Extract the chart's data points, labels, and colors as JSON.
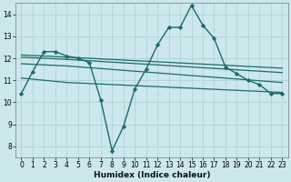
{
  "xlabel": "Humidex (Indice chaleur)",
  "xlim": [
    -0.5,
    23.5
  ],
  "ylim": [
    7.5,
    14.5
  ],
  "yticks": [
    8,
    9,
    10,
    11,
    12,
    13,
    14
  ],
  "xticks": [
    0,
    1,
    2,
    3,
    4,
    5,
    6,
    7,
    8,
    9,
    10,
    11,
    12,
    13,
    14,
    15,
    16,
    17,
    18,
    19,
    20,
    21,
    22,
    23
  ],
  "bg_color": "#cce8ec",
  "grid_color": "#aacdd4",
  "line_color": "#1a6b6b",
  "lines": [
    {
      "x": [
        0,
        1,
        2,
        3,
        4,
        5,
        6,
        7,
        8,
        9,
        10,
        11,
        12,
        13,
        14,
        15,
        16,
        17,
        18,
        19,
        20,
        21,
        22,
        23
      ],
      "y": [
        10.4,
        11.4,
        12.3,
        12.3,
        12.1,
        12.0,
        11.8,
        10.1,
        7.8,
        8.9,
        10.6,
        11.5,
        12.6,
        13.4,
        13.4,
        14.4,
        13.5,
        12.9,
        11.6,
        11.3,
        11.0,
        10.8,
        10.4,
        10.4
      ],
      "marker": "D",
      "marker_size": 2.2,
      "linewidth": 1.0
    },
    {
      "x": [
        0,
        4,
        23
      ],
      "y": [
        12.15,
        12.05,
        11.55
      ],
      "marker": null,
      "linewidth": 0.9
    },
    {
      "x": [
        0,
        4,
        23
      ],
      "y": [
        12.05,
        11.95,
        11.35
      ],
      "marker": null,
      "linewidth": 0.9
    },
    {
      "x": [
        0,
        4,
        23
      ],
      "y": [
        11.75,
        11.65,
        10.9
      ],
      "marker": null,
      "linewidth": 0.9
    },
    {
      "x": [
        0,
        4,
        23
      ],
      "y": [
        11.1,
        10.9,
        10.45
      ],
      "marker": null,
      "linewidth": 0.9
    }
  ]
}
